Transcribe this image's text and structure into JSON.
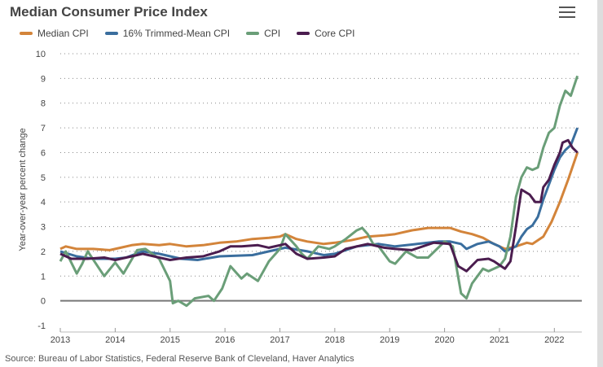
{
  "header": {
    "title": "Median Consumer Price Index",
    "menu_icon": "hamburger-menu-icon"
  },
  "source": "Source: Bureau of Labor Statistics, Federal Reserve Bank of Cleveland, Haver Analytics",
  "chart_data": {
    "type": "line",
    "title": "Median Consumer Price Index",
    "ylabel": "Year-over-year percent change",
    "xlabel": "",
    "ylim": [
      -1,
      10
    ],
    "xlim": [
      2013,
      2022.5
    ],
    "yticks": [
      "-1",
      "0",
      "1",
      "2",
      "3",
      "4",
      "5",
      "6",
      "7",
      "8",
      "9",
      "10"
    ],
    "xticks": [
      "2013",
      "2014",
      "2015",
      "2016",
      "2017",
      "2018",
      "2019",
      "2020",
      "2021",
      "2022"
    ],
    "grid": "horizontal dotted",
    "legend": "top-left",
    "series": [
      {
        "name": "Median CPI",
        "color": "#d3843a",
        "points": [
          [
            2013,
            2.1
          ],
          [
            2013.1,
            2.2
          ],
          [
            2013.3,
            2.1
          ],
          [
            2013.6,
            2.1
          ],
          [
            2013.9,
            2.05
          ],
          [
            2014.1,
            2.15
          ],
          [
            2014.3,
            2.25
          ],
          [
            2014.5,
            2.3
          ],
          [
            2014.8,
            2.25
          ],
          [
            2015.0,
            2.3
          ],
          [
            2015.3,
            2.2
          ],
          [
            2015.6,
            2.25
          ],
          [
            2015.9,
            2.35
          ],
          [
            2016.2,
            2.4
          ],
          [
            2016.5,
            2.5
          ],
          [
            2016.8,
            2.55
          ],
          [
            2017.0,
            2.6
          ],
          [
            2017.1,
            2.7
          ],
          [
            2017.3,
            2.5
          ],
          [
            2017.5,
            2.4
          ],
          [
            2017.8,
            2.3
          ],
          [
            2018.0,
            2.35
          ],
          [
            2018.3,
            2.45
          ],
          [
            2018.6,
            2.6
          ],
          [
            2018.9,
            2.65
          ],
          [
            2019.1,
            2.7
          ],
          [
            2019.4,
            2.85
          ],
          [
            2019.7,
            2.95
          ],
          [
            2019.9,
            2.95
          ],
          [
            2020.1,
            2.95
          ],
          [
            2020.3,
            2.8
          ],
          [
            2020.5,
            2.7
          ],
          [
            2020.7,
            2.55
          ],
          [
            2020.9,
            2.3
          ],
          [
            2021.1,
            2.1
          ],
          [
            2021.3,
            2.2
          ],
          [
            2021.5,
            2.35
          ],
          [
            2021.6,
            2.3
          ],
          [
            2021.8,
            2.6
          ],
          [
            2021.95,
            3.2
          ],
          [
            2022.1,
            4.0
          ],
          [
            2022.25,
            4.9
          ],
          [
            2022.42,
            6.0
          ]
        ]
      },
      {
        "name": "16% Trimmed-Mean CPI",
        "color": "#3a6e9e",
        "points": [
          [
            2013,
            2.0
          ],
          [
            2013.3,
            1.8
          ],
          [
            2013.6,
            1.7
          ],
          [
            2014.0,
            1.7
          ],
          [
            2014.2,
            1.75
          ],
          [
            2014.5,
            2.0
          ],
          [
            2014.8,
            1.9
          ],
          [
            2015.2,
            1.7
          ],
          [
            2015.5,
            1.65
          ],
          [
            2015.9,
            1.8
          ],
          [
            2016.5,
            1.85
          ],
          [
            2016.8,
            2.0
          ],
          [
            2017.1,
            2.15
          ],
          [
            2017.5,
            2.0
          ],
          [
            2017.8,
            1.85
          ],
          [
            2018.0,
            1.9
          ],
          [
            2018.4,
            2.2
          ],
          [
            2018.8,
            2.3
          ],
          [
            2019.1,
            2.2
          ],
          [
            2019.5,
            2.3
          ],
          [
            2019.9,
            2.4
          ],
          [
            2020.1,
            2.4
          ],
          [
            2020.3,
            2.3
          ],
          [
            2020.4,
            2.1
          ],
          [
            2020.6,
            2.3
          ],
          [
            2020.8,
            2.4
          ],
          [
            2021.0,
            2.2
          ],
          [
            2021.1,
            2.0
          ],
          [
            2021.3,
            2.2
          ],
          [
            2021.4,
            2.6
          ],
          [
            2021.5,
            2.9
          ],
          [
            2021.6,
            3.05
          ],
          [
            2021.7,
            3.4
          ],
          [
            2021.8,
            4.1
          ],
          [
            2021.9,
            4.7
          ],
          [
            2022.0,
            5.3
          ],
          [
            2022.1,
            5.8
          ],
          [
            2022.2,
            6.1
          ],
          [
            2022.3,
            6.3
          ],
          [
            2022.42,
            7.0
          ]
        ]
      },
      {
        "name": "CPI",
        "color": "#6a9e78",
        "points": [
          [
            2013,
            1.6
          ],
          [
            2013.1,
            2.0
          ],
          [
            2013.3,
            1.1
          ],
          [
            2013.4,
            1.5
          ],
          [
            2013.5,
            2.0
          ],
          [
            2013.8,
            1.0
          ],
          [
            2014.0,
            1.55
          ],
          [
            2014.15,
            1.1
          ],
          [
            2014.4,
            2.05
          ],
          [
            2014.55,
            2.1
          ],
          [
            2014.8,
            1.7
          ],
          [
            2015.0,
            0.8
          ],
          [
            2015.05,
            -0.1
          ],
          [
            2015.15,
            0.0
          ],
          [
            2015.3,
            -0.2
          ],
          [
            2015.45,
            0.1
          ],
          [
            2015.7,
            0.2
          ],
          [
            2015.8,
            0.0
          ],
          [
            2015.95,
            0.5
          ],
          [
            2016.1,
            1.4
          ],
          [
            2016.3,
            0.9
          ],
          [
            2016.4,
            1.1
          ],
          [
            2016.6,
            0.8
          ],
          [
            2016.8,
            1.6
          ],
          [
            2017.0,
            2.1
          ],
          [
            2017.1,
            2.7
          ],
          [
            2017.3,
            2.2
          ],
          [
            2017.4,
            1.9
          ],
          [
            2017.5,
            1.7
          ],
          [
            2017.7,
            2.2
          ],
          [
            2017.9,
            2.1
          ],
          [
            2018.0,
            2.2
          ],
          [
            2018.2,
            2.5
          ],
          [
            2018.4,
            2.85
          ],
          [
            2018.5,
            2.95
          ],
          [
            2018.6,
            2.7
          ],
          [
            2018.7,
            2.3
          ],
          [
            2018.8,
            2.2
          ],
          [
            2019.0,
            1.6
          ],
          [
            2019.1,
            1.5
          ],
          [
            2019.3,
            2.0
          ],
          [
            2019.5,
            1.75
          ],
          [
            2019.7,
            1.75
          ],
          [
            2020.0,
            2.4
          ],
          [
            2020.15,
            2.2
          ],
          [
            2020.3,
            0.3
          ],
          [
            2020.4,
            0.1
          ],
          [
            2020.5,
            0.7
          ],
          [
            2020.7,
            1.3
          ],
          [
            2020.8,
            1.2
          ],
          [
            2021.0,
            1.4
          ],
          [
            2021.1,
            1.7
          ],
          [
            2021.2,
            2.6
          ],
          [
            2021.3,
            4.2
          ],
          [
            2021.4,
            5.0
          ],
          [
            2021.5,
            5.4
          ],
          [
            2021.6,
            5.3
          ],
          [
            2021.7,
            5.4
          ],
          [
            2021.8,
            6.2
          ],
          [
            2021.9,
            6.8
          ],
          [
            2022.0,
            7.0
          ],
          [
            2022.1,
            7.9
          ],
          [
            2022.2,
            8.5
          ],
          [
            2022.3,
            8.3
          ],
          [
            2022.42,
            9.1
          ]
        ]
      },
      {
        "name": "Core CPI",
        "color": "#4b1d4f",
        "points": [
          [
            2013,
            1.9
          ],
          [
            2013.2,
            1.7
          ],
          [
            2013.5,
            1.7
          ],
          [
            2013.8,
            1.75
          ],
          [
            2014.0,
            1.65
          ],
          [
            2014.3,
            1.8
          ],
          [
            2014.5,
            1.9
          ],
          [
            2014.8,
            1.75
          ],
          [
            2015.0,
            1.65
          ],
          [
            2015.3,
            1.75
          ],
          [
            2015.6,
            1.8
          ],
          [
            2015.9,
            2.0
          ],
          [
            2016.1,
            2.2
          ],
          [
            2016.3,
            2.2
          ],
          [
            2016.6,
            2.25
          ],
          [
            2016.8,
            2.15
          ],
          [
            2017.1,
            2.3
          ],
          [
            2017.3,
            1.9
          ],
          [
            2017.5,
            1.7
          ],
          [
            2017.8,
            1.75
          ],
          [
            2018.0,
            1.8
          ],
          [
            2018.2,
            2.1
          ],
          [
            2018.6,
            2.3
          ],
          [
            2018.9,
            2.15
          ],
          [
            2019.1,
            2.1
          ],
          [
            2019.4,
            2.05
          ],
          [
            2019.8,
            2.35
          ],
          [
            2020.1,
            2.3
          ],
          [
            2020.25,
            1.4
          ],
          [
            2020.4,
            1.2
          ],
          [
            2020.6,
            1.65
          ],
          [
            2020.8,
            1.7
          ],
          [
            2020.9,
            1.6
          ],
          [
            2021.1,
            1.3
          ],
          [
            2021.2,
            1.6
          ],
          [
            2021.3,
            3.0
          ],
          [
            2021.4,
            4.5
          ],
          [
            2021.55,
            4.3
          ],
          [
            2021.65,
            4.0
          ],
          [
            2021.75,
            4.0
          ],
          [
            2021.8,
            4.6
          ],
          [
            2021.9,
            4.9
          ],
          [
            2022.0,
            5.5
          ],
          [
            2022.1,
            6.0
          ],
          [
            2022.15,
            6.4
          ],
          [
            2022.25,
            6.5
          ],
          [
            2022.33,
            6.2
          ],
          [
            2022.42,
            6.0
          ]
        ]
      }
    ]
  }
}
